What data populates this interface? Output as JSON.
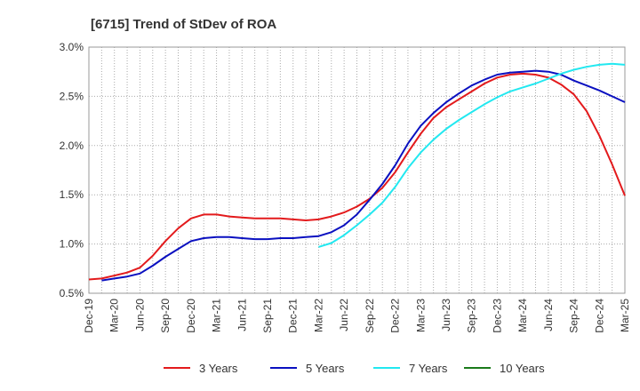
{
  "chart_data": {
    "type": "line",
    "title": "[6715]  Trend of StDev of ROA",
    "xlabel": "",
    "ylabel": "",
    "x_ticks": [
      "Dec-19",
      "Mar-20",
      "Jun-20",
      "Sep-20",
      "Dec-20",
      "Mar-21",
      "Jun-21",
      "Sep-21",
      "Dec-21",
      "Mar-22",
      "Jun-22",
      "Sep-22",
      "Dec-22",
      "Mar-23",
      "Jun-23",
      "Sep-23",
      "Dec-23",
      "Mar-24",
      "Jun-24",
      "Sep-24",
      "Dec-24",
      "Mar-25"
    ],
    "y_ticks": [
      "0.5%",
      "1.0%",
      "1.5%",
      "2.0%",
      "2.5%",
      "3.0%"
    ],
    "ylim": [
      0.5,
      3.0
    ],
    "grid": "dotted",
    "legend_position": "bottom",
    "series": [
      {
        "name": "3 Years",
        "color": "#e31a1c",
        "values": [
          [
            0,
            0.64
          ],
          [
            1,
            0.65
          ],
          [
            2,
            0.68
          ],
          [
            3,
            0.71
          ],
          [
            4,
            0.76
          ],
          [
            5,
            0.88
          ],
          [
            6,
            1.03
          ],
          [
            7,
            1.16
          ],
          [
            8,
            1.26
          ],
          [
            9,
            1.3
          ],
          [
            10,
            1.3
          ],
          [
            11,
            1.28
          ],
          [
            12,
            1.27
          ],
          [
            13,
            1.26
          ],
          [
            14,
            1.26
          ],
          [
            15,
            1.26
          ],
          [
            16,
            1.25
          ],
          [
            17,
            1.24
          ],
          [
            18,
            1.25
          ],
          [
            19,
            1.28
          ],
          [
            20,
            1.32
          ],
          [
            21,
            1.38
          ],
          [
            22,
            1.46
          ],
          [
            23,
            1.57
          ],
          [
            24,
            1.73
          ],
          [
            25,
            1.93
          ],
          [
            26,
            2.12
          ],
          [
            27,
            2.28
          ],
          [
            28,
            2.39
          ],
          [
            29,
            2.47
          ],
          [
            30,
            2.55
          ],
          [
            31,
            2.63
          ],
          [
            32,
            2.69
          ],
          [
            33,
            2.72
          ],
          [
            34,
            2.73
          ],
          [
            35,
            2.72
          ],
          [
            36,
            2.69
          ],
          [
            37,
            2.62
          ],
          [
            38,
            2.52
          ],
          [
            39,
            2.35
          ],
          [
            40,
            2.1
          ],
          [
            41,
            1.81
          ],
          [
            42,
            1.49
          ]
        ]
      },
      {
        "name": "5 Years",
        "color": "#0a10c0",
        "values": [
          [
            1,
            0.63
          ],
          [
            2,
            0.65
          ],
          [
            3,
            0.67
          ],
          [
            4,
            0.7
          ],
          [
            5,
            0.78
          ],
          [
            6,
            0.87
          ],
          [
            7,
            0.95
          ],
          [
            8,
            1.03
          ],
          [
            9,
            1.06
          ],
          [
            10,
            1.07
          ],
          [
            11,
            1.07
          ],
          [
            12,
            1.06
          ],
          [
            13,
            1.05
          ],
          [
            14,
            1.05
          ],
          [
            15,
            1.06
          ],
          [
            16,
            1.06
          ],
          [
            17,
            1.07
          ],
          [
            18,
            1.08
          ],
          [
            19,
            1.12
          ],
          [
            20,
            1.19
          ],
          [
            21,
            1.3
          ],
          [
            22,
            1.45
          ],
          [
            23,
            1.61
          ],
          [
            24,
            1.8
          ],
          [
            25,
            2.02
          ],
          [
            26,
            2.2
          ],
          [
            27,
            2.33
          ],
          [
            28,
            2.44
          ],
          [
            29,
            2.53
          ],
          [
            30,
            2.61
          ],
          [
            31,
            2.67
          ],
          [
            32,
            2.72
          ],
          [
            33,
            2.74
          ],
          [
            34,
            2.75
          ],
          [
            35,
            2.76
          ],
          [
            36,
            2.75
          ],
          [
            37,
            2.72
          ],
          [
            38,
            2.66
          ],
          [
            39,
            2.61
          ],
          [
            40,
            2.56
          ],
          [
            41,
            2.5
          ],
          [
            42,
            2.44
          ]
        ]
      },
      {
        "name": "7 Years",
        "color": "#22e8f0",
        "values": [
          [
            18,
            0.97
          ],
          [
            19,
            1.01
          ],
          [
            20,
            1.09
          ],
          [
            21,
            1.19
          ],
          [
            22,
            1.3
          ],
          [
            23,
            1.42
          ],
          [
            24,
            1.58
          ],
          [
            25,
            1.77
          ],
          [
            26,
            1.93
          ],
          [
            27,
            2.06
          ],
          [
            28,
            2.17
          ],
          [
            29,
            2.26
          ],
          [
            30,
            2.34
          ],
          [
            31,
            2.42
          ],
          [
            32,
            2.49
          ],
          [
            33,
            2.55
          ],
          [
            34,
            2.59
          ],
          [
            35,
            2.63
          ],
          [
            36,
            2.68
          ],
          [
            37,
            2.73
          ],
          [
            38,
            2.77
          ],
          [
            39,
            2.8
          ],
          [
            40,
            2.82
          ],
          [
            41,
            2.83
          ],
          [
            42,
            2.82
          ]
        ]
      },
      {
        "name": "10 Years",
        "color": "#1a7a1a",
        "values": []
      }
    ]
  }
}
